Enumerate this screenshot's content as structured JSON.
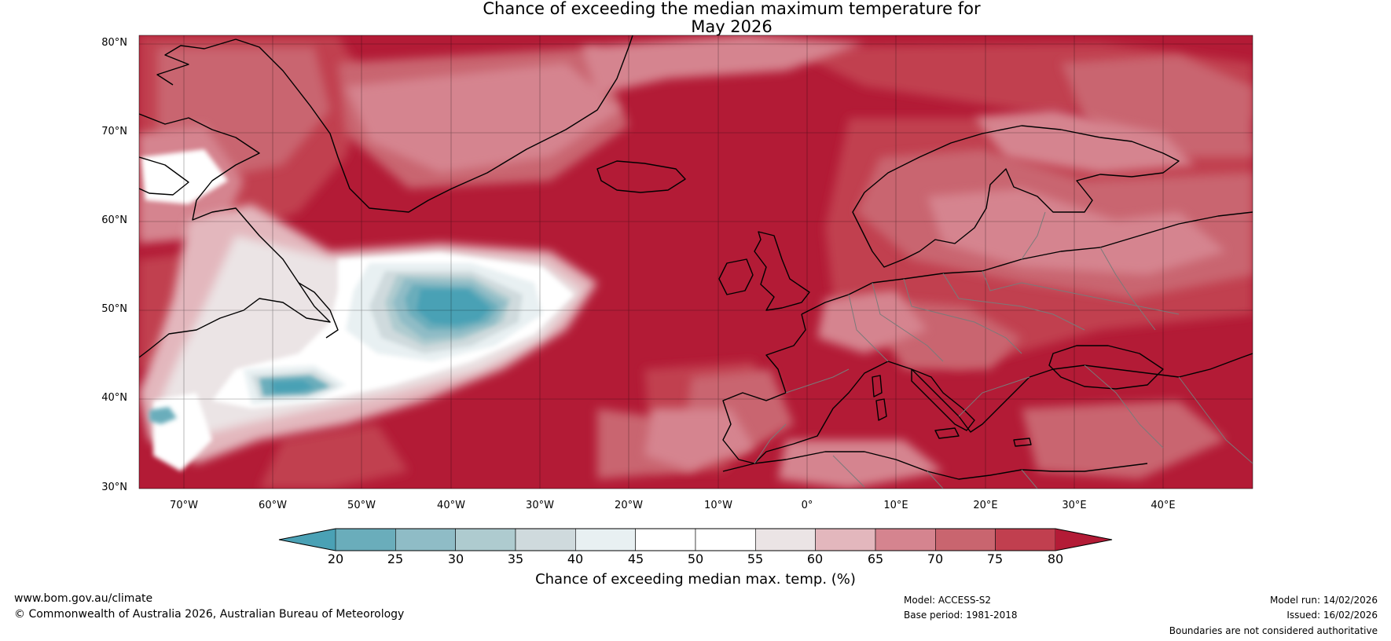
{
  "title": {
    "line1": "Chance of exceeding the median maximum temperature for",
    "line2": "May 2026"
  },
  "map": {
    "lat_labels": [
      "80°N",
      "70°N",
      "60°N",
      "50°N",
      "40°N",
      "30°N"
    ],
    "lon_labels": [
      "70°W",
      "60°W",
      "50°W",
      "40°W",
      "30°W",
      "20°W",
      "10°W",
      "0°",
      "10°E",
      "20°E",
      "30°E",
      "40°E"
    ],
    "extent": {
      "lon_min": -75,
      "lon_max": 50,
      "lat_min": 30,
      "lat_max": 81
    }
  },
  "colorbar": {
    "ticks": [
      "20",
      "25",
      "30",
      "35",
      "40",
      "45",
      "50",
      "55",
      "60",
      "65",
      "70",
      "75",
      "80"
    ],
    "colors": [
      "#4aa1b5",
      "#6aadbb",
      "#8fbcc6",
      "#aecbcf",
      "#cfdadd",
      "#e8f0f2",
      "#ffffff",
      "#ffffff",
      "#ebe4e5",
      "#e3b7bd",
      "#d5848f",
      "#c9656f",
      "#c13f4f",
      "#b31b36"
    ],
    "title": "Chance of exceeding median max. temp. (%)"
  },
  "footer": {
    "website": "www.bom.gov.au/climate",
    "copyright": "© Commonwealth of Australia 2026, Australian Bureau of Meteorology",
    "model": "Model: ACCESS-S2",
    "base_period": "Base period: 1981-2018",
    "model_run": "Model run: 14/02/2026",
    "issued": "Issued: 16/02/2026",
    "disclaimer": "Boundaries are not considered authoritative"
  }
}
